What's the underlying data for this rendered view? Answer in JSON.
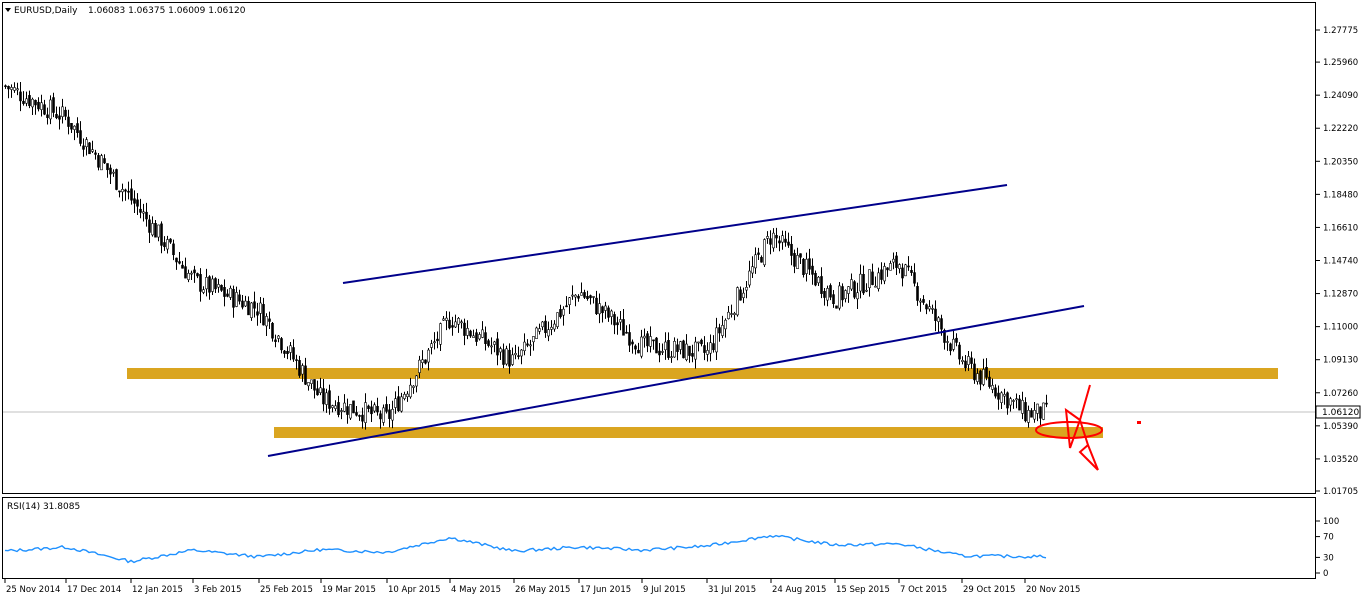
{
  "header": {
    "symbol_label": "EURUSD,Daily",
    "ohlc": "1.06083 1.06375 1.06009 1.06120"
  },
  "colors": {
    "background": "#ffffff",
    "frame": "#000000",
    "candle": "#000000",
    "zone": "#daa520",
    "trendline": "#00008b",
    "rsi_line": "#1e90ff",
    "annotation": "#ff0000",
    "price_badge_bg": "#ffffff"
  },
  "chart_data": [
    {
      "type": "candlestick",
      "symbol": "EURUSD",
      "timeframe": "Daily",
      "y_ticks": [
        "1.27775",
        "1.25960",
        "1.24090",
        "1.22220",
        "1.20350",
        "1.18480",
        "1.16610",
        "1.14740",
        "1.12870",
        "1.11000",
        "1.09130",
        "1.07260",
        "1.05390",
        "1.03520",
        "1.01705"
      ],
      "ylim": [
        1.01705,
        1.27775
      ],
      "x_ticks": [
        "25 Nov 2014",
        "17 Dec 2014",
        "12 Jan 2015",
        "3 Feb 2015",
        "25 Feb 2015",
        "19 Mar 2015",
        "10 Apr 2015",
        "4 May 2015",
        "26 May 2015",
        "17 Jun 2015",
        "9 Jul 2015",
        "31 Jul 2015",
        "24 Aug 2015",
        "15 Sep 2015",
        "7 Oct 2015",
        "29 Oct 2015",
        "20 Nov 2015"
      ],
      "current_price": "1.06120",
      "close_path": [
        {
          "x": "25 Nov 2014",
          "y": 1.246
        },
        {
          "x": "17 Dec 2014",
          "y": 1.228
        },
        {
          "x": "12 Jan 2015",
          "y": 1.182
        },
        {
          "x": "3 Feb 2015",
          "y": 1.136
        },
        {
          "x": "25 Feb 2015",
          "y": 1.12
        },
        {
          "x": "19 Mar 2015",
          "y": 1.069
        },
        {
          "x": "10 Apr 2015",
          "y": 1.058
        },
        {
          "x": "4 May 2015",
          "y": 1.115
        },
        {
          "x": "26 May 2015",
          "y": 1.09
        },
        {
          "x": "17 Jun 2015",
          "y": 1.13
        },
        {
          "x": "9 Jul 2015",
          "y": 1.099
        },
        {
          "x": "31 Jul 2015",
          "y": 1.095
        },
        {
          "x": "24 Aug 2015",
          "y": 1.162
        },
        {
          "x": "15 Sep 2015",
          "y": 1.126
        },
        {
          "x": "7 Oct 2015",
          "y": 1.146
        },
        {
          "x": "29 Oct 2015",
          "y": 1.09
        },
        {
          "x": "20 Nov 2015",
          "y": 1.061
        }
      ],
      "zones": [
        {
          "name": "resistance-zone",
          "from": "3 Feb 2015",
          "to": "beyond 20 Nov 2015",
          "y_low": 1.0815,
          "y_high": 1.088
        },
        {
          "name": "support-zone",
          "from": "19 Mar 2015",
          "to": "after 20 Nov 2015",
          "y_low": 1.045,
          "y_high": 1.0513
        }
      ],
      "trendlines": [
        {
          "name": "channel-top",
          "from": {
            "x": "26 Feb 2015",
            "y": 1.1337
          },
          "to": {
            "x": "23 Oct 2015",
            "y": 1.1928
          }
        },
        {
          "name": "channel-bottom",
          "from": {
            "x": "18 Feb 2015",
            "y": 1.0346
          },
          "to": {
            "x": "1 Dec 2015",
            "y": 1.125
          }
        }
      ],
      "grid": false
    },
    {
      "type": "line",
      "label": "RSI(14) 31.8085",
      "y_ticks": [
        "100",
        "70",
        "30",
        "0"
      ],
      "ylim": [
        0,
        100
      ],
      "last_value": 31.8085,
      "path": [
        {
          "x": "25 Nov 2014",
          "y": 42
        },
        {
          "x": "17 Dec 2014",
          "y": 50
        },
        {
          "x": "12 Jan 2015",
          "y": 22
        },
        {
          "x": "3 Feb 2015",
          "y": 44
        },
        {
          "x": "25 Feb 2015",
          "y": 31
        },
        {
          "x": "19 Mar 2015",
          "y": 45
        },
        {
          "x": "10 Apr 2015",
          "y": 40
        },
        {
          "x": "4 May 2015",
          "y": 68
        },
        {
          "x": "26 May 2015",
          "y": 42
        },
        {
          "x": "17 Jun 2015",
          "y": 50
        },
        {
          "x": "9 Jul 2015",
          "y": 44
        },
        {
          "x": "31 Jul 2015",
          "y": 52
        },
        {
          "x": "24 Aug 2015",
          "y": 72
        },
        {
          "x": "15 Sep 2015",
          "y": 54
        },
        {
          "x": "7 Oct 2015",
          "y": 56
        },
        {
          "x": "29 Oct 2015",
          "y": 33
        },
        {
          "x": "20 Nov 2015",
          "y": 31.8
        }
      ]
    }
  ]
}
